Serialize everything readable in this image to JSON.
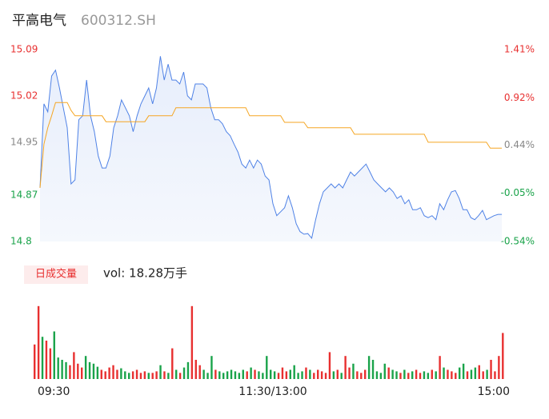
{
  "header": {
    "name": "平高电气",
    "code": "600312.SH"
  },
  "chart_data": [
    {
      "type": "line",
      "x": [
        0,
        2,
        4,
        6,
        8,
        10,
        12,
        14,
        16,
        18,
        20,
        22,
        24,
        26,
        28,
        30,
        32,
        34,
        36,
        38,
        40,
        42,
        44,
        46,
        48,
        50,
        52,
        54,
        56,
        58,
        60,
        62,
        64,
        66,
        68,
        70,
        72,
        74,
        76,
        78,
        80,
        82,
        84,
        86,
        88,
        90,
        92,
        94,
        96,
        98,
        100,
        102,
        104,
        106,
        108,
        110,
        112,
        114,
        116,
        118,
        120,
        122,
        124,
        126,
        128,
        130,
        132,
        134,
        136,
        138,
        140,
        142,
        144,
        146,
        148,
        150,
        152,
        154,
        156,
        158,
        160,
        162,
        164,
        166,
        168,
        170,
        172,
        174,
        176,
        178,
        180,
        182,
        184,
        186,
        188,
        190,
        192,
        194,
        196,
        198,
        200,
        202,
        204,
        206,
        208,
        210,
        212,
        214,
        216,
        218,
        220,
        222,
        224,
        226,
        228,
        230,
        232,
        234,
        236,
        238
      ],
      "xlim": [
        0,
        240
      ],
      "ylim": [
        14.8,
        15.09
      ],
      "yticks": [
        15.09,
        15.02,
        14.95,
        14.87,
        14.8
      ],
      "ytick_colors": [
        "#e83030",
        "#e83030",
        "#888888",
        "#1aa34a",
        "#1aa34a"
      ],
      "y2lim": [
        -0.54,
        1.41
      ],
      "y2ticks": [
        {
          "value": 1.41,
          "label": "1.41%"
        },
        {
          "value": 0.92,
          "label": "0.92%"
        },
        {
          "value": 0.44,
          "label": "0.44%"
        },
        {
          "value": -0.05,
          "label": "-0.05%"
        },
        {
          "value": -0.54,
          "label": "-0.54%"
        }
      ],
      "series": [
        {
          "color": "#4f82e6",
          "values": [
            14.881,
            15.008,
            14.996,
            15.05,
            15.059,
            15.032,
            15.002,
            14.972,
            14.887,
            14.893,
            14.984,
            14.99,
            15.044,
            14.99,
            14.966,
            14.929,
            14.911,
            14.911,
            14.929,
            14.972,
            14.99,
            15.014,
            15.002,
            14.99,
            14.966,
            14.99,
            15.008,
            15.02,
            15.032,
            15.008,
            15.032,
            15.08,
            15.044,
            15.068,
            15.044,
            15.044,
            15.038,
            15.056,
            15.02,
            15.014,
            15.038,
            15.038,
            15.038,
            15.032,
            15.002,
            14.984,
            14.984,
            14.978,
            14.966,
            14.96,
            14.947,
            14.935,
            14.917,
            14.911,
            14.923,
            14.911,
            14.923,
            14.917,
            14.899,
            14.893,
            14.857,
            14.839,
            14.845,
            14.851,
            14.869,
            14.851,
            14.827,
            14.815,
            14.811,
            14.812,
            14.805,
            14.833,
            14.857,
            14.875,
            14.881,
            14.887,
            14.881,
            14.887,
            14.881,
            14.893,
            14.905,
            14.899,
            14.905,
            14.911,
            14.917,
            14.905,
            14.893,
            14.887,
            14.881,
            14.875,
            14.881,
            14.875,
            14.865,
            14.869,
            14.857,
            14.863,
            14.848,
            14.848,
            14.851,
            14.839,
            14.836,
            14.839,
            14.833,
            14.857,
            14.848,
            14.863,
            14.875,
            14.877,
            14.865,
            14.848,
            14.848,
            14.836,
            14.833,
            14.839,
            14.847,
            14.833,
            14.836,
            14.839,
            14.841,
            14.841
          ]
        },
        {
          "color": "#f5a623",
          "values": [
            14.881,
            14.947,
            14.972,
            14.99,
            15.01,
            15.01,
            15.01,
            15.01,
            14.998,
            14.99,
            14.99,
            14.99,
            14.99,
            14.99,
            14.99,
            14.99,
            14.99,
            14.981,
            14.981,
            14.981,
            14.981,
            14.981,
            14.981,
            14.981,
            14.981,
            14.981,
            14.981,
            14.981,
            14.99,
            14.99,
            14.99,
            14.99,
            14.99,
            14.99,
            14.99,
            15.002,
            15.002,
            15.002,
            15.002,
            15.002,
            15.002,
            15.002,
            15.002,
            15.002,
            15.002,
            15.002,
            15.002,
            15.002,
            15.002,
            15.002,
            15.002,
            15.002,
            15.002,
            15.002,
            14.99,
            14.99,
            14.99,
            14.99,
            14.99,
            14.99,
            14.99,
            14.99,
            14.99,
            14.98,
            14.98,
            14.98,
            14.98,
            14.98,
            14.98,
            14.972,
            14.972,
            14.972,
            14.972,
            14.972,
            14.972,
            14.972,
            14.972,
            14.972,
            14.972,
            14.972,
            14.972,
            14.962,
            14.962,
            14.962,
            14.962,
            14.962,
            14.962,
            14.962,
            14.962,
            14.962,
            14.962,
            14.962,
            14.962,
            14.962,
            14.962,
            14.962,
            14.962,
            14.962,
            14.962,
            14.962,
            14.95,
            14.95,
            14.95,
            14.95,
            14.95,
            14.95,
            14.95,
            14.95,
            14.95,
            14.95,
            14.95,
            14.95,
            14.95,
            14.95,
            14.95,
            14.95,
            14.941,
            14.941,
            14.941,
            14.941
          ]
        }
      ]
    },
    {
      "type": "bar",
      "label": "日成交量",
      "summary": "vol: 18.28万手",
      "x": [
        0,
        2,
        4,
        6,
        8,
        10,
        12,
        14,
        16,
        18,
        20,
        22,
        24,
        26,
        28,
        30,
        32,
        34,
        36,
        38,
        40,
        42,
        44,
        46,
        48,
        50,
        52,
        54,
        56,
        58,
        60,
        62,
        64,
        66,
        68,
        70,
        72,
        74,
        76,
        78,
        80,
        82,
        84,
        86,
        88,
        90,
        92,
        94,
        96,
        98,
        100,
        102,
        104,
        106,
        108,
        110,
        112,
        114,
        116,
        118,
        120,
        122,
        124,
        126,
        128,
        130,
        132,
        134,
        136,
        138,
        140,
        142,
        144,
        146,
        148,
        150,
        152,
        154,
        156,
        158,
        160,
        162,
        164,
        166,
        168,
        170,
        172,
        174,
        176,
        178,
        180,
        182,
        184,
        186,
        188,
        190,
        192,
        194,
        196,
        198,
        200,
        202,
        204,
        206,
        208,
        210,
        212,
        214,
        216,
        218,
        220,
        222,
        224,
        226,
        228,
        230,
        232,
        234,
        236,
        238
      ],
      "xlim": [
        0,
        240
      ],
      "xticks": [
        {
          "value": 0,
          "label": "09:30"
        },
        {
          "value": 120,
          "label": "11:30/13:00"
        },
        {
          "value": 240,
          "label": "15:00"
        }
      ],
      "ylim": [
        0,
        100
      ],
      "up_color": "#e83030",
      "down_color": "#1aa34a",
      "values": [
        45,
        95,
        55,
        50,
        40,
        62,
        28,
        25,
        22,
        18,
        35,
        20,
        15,
        30,
        22,
        20,
        16,
        12,
        10,
        15,
        18,
        12,
        14,
        10,
        8,
        10,
        12,
        8,
        10,
        8,
        8,
        10,
        18,
        10,
        8,
        40,
        12,
        8,
        15,
        22,
        95,
        25,
        18,
        12,
        8,
        30,
        12,
        10,
        8,
        10,
        12,
        10,
        8,
        12,
        10,
        15,
        12,
        10,
        8,
        30,
        12,
        10,
        8,
        15,
        10,
        12,
        18,
        8,
        10,
        15,
        12,
        8,
        12,
        10,
        8,
        35,
        10,
        12,
        8,
        30,
        15,
        20,
        10,
        8,
        12,
        30,
        25,
        10,
        8,
        20,
        15,
        12,
        10,
        8,
        12,
        8,
        10,
        12,
        8,
        10,
        8,
        12,
        10,
        30,
        15,
        12,
        10,
        8,
        15,
        20,
        10,
        12,
        15,
        18,
        10,
        12,
        25,
        10,
        30,
        60
      ]
    }
  ]
}
